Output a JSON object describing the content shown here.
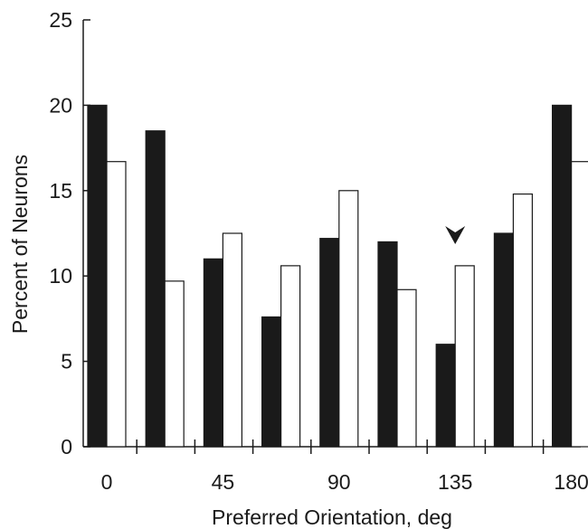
{
  "chart_data": {
    "type": "bar",
    "title": "",
    "xlabel": "Preferred Orientation, deg",
    "ylabel": "Percent of Neurons",
    "ylim": [
      0,
      25
    ],
    "yticks": [
      0,
      5,
      10,
      15,
      20,
      25
    ],
    "xtick_labels": [
      "0",
      "45",
      "90",
      "135",
      "180"
    ],
    "grid": false,
    "legend": "none",
    "series": [
      {
        "fill": "#1a1a1a",
        "values": [
          20,
          18.5,
          11,
          7.6,
          12.2,
          12,
          6,
          12.5,
          20
        ]
      },
      {
        "fill": "#ffffff",
        "values": [
          16.7,
          9.7,
          12.5,
          10.6,
          15,
          9.2,
          10.6,
          14.8,
          16.7
        ]
      }
    ],
    "annotation": {
      "shape": "arrowhead",
      "pointing": "down",
      "group_index": 6
    }
  }
}
